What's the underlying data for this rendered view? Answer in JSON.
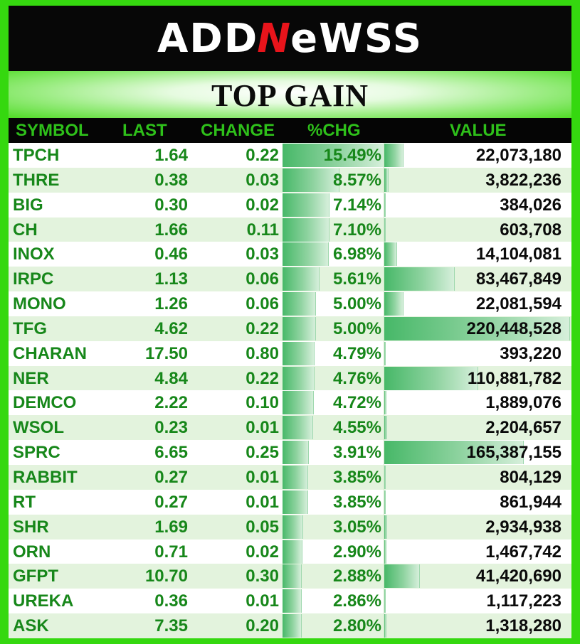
{
  "logo": {
    "pre": "ADD",
    "mid": "N",
    "post": "eWSS"
  },
  "title": "TOP GAIN",
  "columns": {
    "symbol": "SYMBOL",
    "last": "LAST",
    "change": "CHANGE",
    "pct": "%CHG",
    "value": "VALUE"
  },
  "colors": {
    "background": "#35d80f",
    "header_bg": "#050505",
    "header_text": "#2ec01a",
    "text_green": "#17871a",
    "row_alt": "#e3f3dd",
    "logo_accent": "#e8141b"
  },
  "rows": [
    {
      "symbol": "TPCH",
      "last": "1.64",
      "change": "0.22",
      "pct": "15.49%",
      "value": "22,073,180",
      "pct_num": 15.49,
      "value_num": 22073180
    },
    {
      "symbol": "THRE",
      "last": "0.38",
      "change": "0.03",
      "pct": "8.57%",
      "value": "3,822,236",
      "pct_num": 8.57,
      "value_num": 3822236
    },
    {
      "symbol": "BIG",
      "last": "0.30",
      "change": "0.02",
      "pct": "7.14%",
      "value": "384,026",
      "pct_num": 7.14,
      "value_num": 384026
    },
    {
      "symbol": "CH",
      "last": "1.66",
      "change": "0.11",
      "pct": "7.10%",
      "value": "603,708",
      "pct_num": 7.1,
      "value_num": 603708
    },
    {
      "symbol": "INOX",
      "last": "0.46",
      "change": "0.03",
      "pct": "6.98%",
      "value": "14,104,081",
      "pct_num": 6.98,
      "value_num": 14104081
    },
    {
      "symbol": "IRPC",
      "last": "1.13",
      "change": "0.06",
      "pct": "5.61%",
      "value": "83,467,849",
      "pct_num": 5.61,
      "value_num": 83467849
    },
    {
      "symbol": "MONO",
      "last": "1.26",
      "change": "0.06",
      "pct": "5.00%",
      "value": "22,081,594",
      "pct_num": 5.0,
      "value_num": 22081594
    },
    {
      "symbol": "TFG",
      "last": "4.62",
      "change": "0.22",
      "pct": "5.00%",
      "value": "220,448,528",
      "pct_num": 5.0,
      "value_num": 220448528
    },
    {
      "symbol": "CHARAN",
      "last": "17.50",
      "change": "0.80",
      "pct": "4.79%",
      "value": "393,220",
      "pct_num": 4.79,
      "value_num": 393220
    },
    {
      "symbol": "NER",
      "last": "4.84",
      "change": "0.22",
      "pct": "4.76%",
      "value": "110,881,782",
      "pct_num": 4.76,
      "value_num": 110881782
    },
    {
      "symbol": "DEMCO",
      "last": "2.22",
      "change": "0.10",
      "pct": "4.72%",
      "value": "1,889,076",
      "pct_num": 4.72,
      "value_num": 1889076
    },
    {
      "symbol": "WSOL",
      "last": "0.23",
      "change": "0.01",
      "pct": "4.55%",
      "value": "2,204,657",
      "pct_num": 4.55,
      "value_num": 2204657
    },
    {
      "symbol": "SPRC",
      "last": "6.65",
      "change": "0.25",
      "pct": "3.91%",
      "value": "165,387,155",
      "pct_num": 3.91,
      "value_num": 165387155
    },
    {
      "symbol": "RABBIT",
      "last": "0.27",
      "change": "0.01",
      "pct": "3.85%",
      "value": "804,129",
      "pct_num": 3.85,
      "value_num": 804129
    },
    {
      "symbol": "RT",
      "last": "0.27",
      "change": "0.01",
      "pct": "3.85%",
      "value": "861,944",
      "pct_num": 3.85,
      "value_num": 861944
    },
    {
      "symbol": "SHR",
      "last": "1.69",
      "change": "0.05",
      "pct": "3.05%",
      "value": "2,934,938",
      "pct_num": 3.05,
      "value_num": 2934938
    },
    {
      "symbol": "ORN",
      "last": "0.71",
      "change": "0.02",
      "pct": "2.90%",
      "value": "1,467,742",
      "pct_num": 2.9,
      "value_num": 1467742
    },
    {
      "symbol": "GFPT",
      "last": "10.70",
      "change": "0.30",
      "pct": "2.88%",
      "value": "41,420,690",
      "pct_num": 2.88,
      "value_num": 41420690
    },
    {
      "symbol": "UREKA",
      "last": "0.36",
      "change": "0.01",
      "pct": "2.86%",
      "value": "1,117,223",
      "pct_num": 2.86,
      "value_num": 1117223
    },
    {
      "symbol": "ASK",
      "last": "7.35",
      "change": "0.20",
      "pct": "2.80%",
      "value": "1,318,280",
      "pct_num": 2.8,
      "value_num": 1318280
    }
  ]
}
